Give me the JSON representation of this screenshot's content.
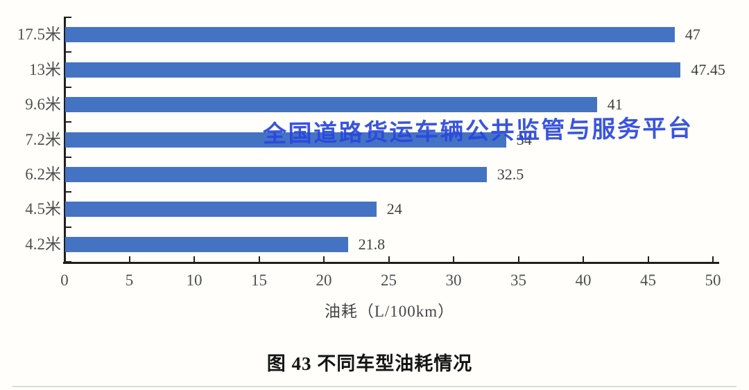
{
  "chart_data": {
    "type": "bar",
    "orientation": "horizontal",
    "title": "图 43 不同车型油耗情况",
    "xlabel": "油耗（L/100km）",
    "ylabel": "",
    "categories": [
      "17.5米",
      "13米",
      "9.6米",
      "7.2米",
      "6.2米",
      "4.5米",
      "4.2米"
    ],
    "values": [
      47,
      47.45,
      41,
      34,
      32.5,
      24,
      21.8
    ],
    "value_labels": [
      "47",
      "47.45",
      "41",
      "34",
      "32.5",
      "24",
      "21.8"
    ],
    "x_ticks": [
      0,
      5,
      10,
      15,
      20,
      25,
      30,
      35,
      40,
      45,
      50
    ],
    "xlim": [
      0,
      50
    ],
    "grid": false,
    "legend": null,
    "bar_color": "#4573C4"
  },
  "watermark": {
    "text": "全国道路货运车辆公共监管与服务平台",
    "color": "#2946E0"
  }
}
